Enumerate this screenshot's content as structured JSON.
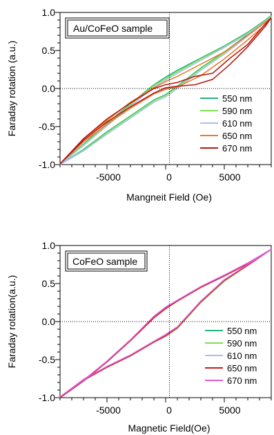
{
  "chart_data": [
    {
      "type": "line",
      "title": "",
      "xlabel": "Mangneit Field (Oe)",
      "ylabel": "Faraday rotation  (a.u.)",
      "xlim": [
        -9000,
        9000
      ],
      "ylim": [
        -1.0,
        1.0
      ],
      "xticks": [
        "-5000",
        "0",
        "5000"
      ],
      "yticks": [
        "-1.0",
        "-0.5",
        "0.0",
        "0.5",
        "1.0"
      ],
      "annotation": "Au/CoFeO sample",
      "legend_placement": "bottom-right",
      "grid": false,
      "series": [
        {
          "name": "550 nm",
          "color": "#1fb57c",
          "upper": [
            [
              -9000,
              -1.0
            ],
            [
              -7000,
              -0.73
            ],
            [
              -5000,
              -0.46
            ],
            [
              -3000,
              -0.2
            ],
            [
              -1000,
              0.05
            ],
            [
              0,
              0.15
            ],
            [
              1000,
              0.24
            ],
            [
              3000,
              0.4
            ],
            [
              5000,
              0.56
            ],
            [
              7000,
              0.74
            ],
            [
              8500,
              0.9
            ],
            [
              9000,
              0.96
            ]
          ],
          "lower": [
            [
              -9000,
              -1.0
            ],
            [
              -7000,
              -0.8
            ],
            [
              -5000,
              -0.57
            ],
            [
              -3000,
              -0.36
            ],
            [
              -1000,
              -0.15
            ],
            [
              0,
              -0.08
            ],
            [
              1000,
              0.03
            ],
            [
              3000,
              0.27
            ],
            [
              5000,
              0.48
            ],
            [
              7000,
              0.71
            ],
            [
              8500,
              0.89
            ],
            [
              9000,
              0.96
            ]
          ]
        },
        {
          "name": "590 nm",
          "color": "#7fe052",
          "upper": [
            [
              -9000,
              -1.0
            ],
            [
              -7000,
              -0.74
            ],
            [
              -5000,
              -0.47
            ],
            [
              -3000,
              -0.21
            ],
            [
              -1000,
              0.04
            ],
            [
              0,
              0.13
            ],
            [
              1000,
              0.22
            ],
            [
              3000,
              0.39
            ],
            [
              5000,
              0.55
            ],
            [
              7000,
              0.73
            ],
            [
              8500,
              0.89
            ],
            [
              9000,
              0.95
            ]
          ],
          "lower": [
            [
              -9000,
              -1.0
            ],
            [
              -7000,
              -0.81
            ],
            [
              -5000,
              -0.58
            ],
            [
              -3000,
              -0.37
            ],
            [
              -1000,
              -0.16
            ],
            [
              0,
              -0.09
            ],
            [
              1000,
              0.02
            ],
            [
              3000,
              0.26
            ],
            [
              5000,
              0.47
            ],
            [
              7000,
              0.7
            ],
            [
              8500,
              0.88
            ],
            [
              9000,
              0.95
            ]
          ]
        },
        {
          "name": "610 nm",
          "color": "#a9bff0",
          "upper": [
            [
              -9000,
              -1.0
            ],
            [
              -7000,
              -0.75
            ],
            [
              -5000,
              -0.49
            ],
            [
              -3000,
              -0.23
            ],
            [
              -1000,
              0.02
            ],
            [
              0,
              0.11
            ],
            [
              1000,
              0.2
            ],
            [
              3000,
              0.37
            ],
            [
              5000,
              0.54
            ],
            [
              7000,
              0.72
            ],
            [
              8500,
              0.88
            ],
            [
              9000,
              0.94
            ]
          ],
          "lower": [
            [
              -9000,
              -1.0
            ],
            [
              -7000,
              -0.82
            ],
            [
              -5000,
              -0.6
            ],
            [
              -3000,
              -0.39
            ],
            [
              -1000,
              -0.18
            ],
            [
              0,
              -0.11
            ],
            [
              1000,
              0.0
            ],
            [
              3000,
              0.24
            ],
            [
              5000,
              0.45
            ],
            [
              7000,
              0.69
            ],
            [
              8500,
              0.87
            ],
            [
              9000,
              0.94
            ]
          ]
        },
        {
          "name": "650 nm",
          "color": "#f07a24",
          "upper": [
            [
              -9000,
              -0.99
            ],
            [
              -7000,
              -0.66
            ],
            [
              -5000,
              -0.42
            ],
            [
              -3000,
              -0.18
            ],
            [
              -1000,
              0.01
            ],
            [
              0,
              0.09
            ],
            [
              1000,
              0.16
            ],
            [
              3000,
              0.32
            ],
            [
              5000,
              0.48
            ],
            [
              7000,
              0.7
            ],
            [
              8500,
              0.87
            ],
            [
              9000,
              0.93
            ]
          ],
          "lower": [
            [
              -9000,
              -0.99
            ],
            [
              -7000,
              -0.7
            ],
            [
              -5000,
              -0.47
            ],
            [
              -3000,
              -0.26
            ],
            [
              -1000,
              -0.07
            ],
            [
              0,
              -0.01
            ],
            [
              1000,
              0.02
            ],
            [
              3000,
              0.17
            ],
            [
              5000,
              0.39
            ],
            [
              7000,
              0.64
            ],
            [
              8500,
              0.84
            ],
            [
              9000,
              0.93
            ]
          ]
        },
        {
          "name": "670 nm",
          "color": "#b51a14",
          "upper": [
            [
              -9000,
              -0.99
            ],
            [
              -7000,
              -0.66
            ],
            [
              -5000,
              -0.4
            ],
            [
              -3000,
              -0.19
            ],
            [
              -1000,
              0.0
            ],
            [
              0,
              0.05
            ],
            [
              1000,
              0.08
            ],
            [
              2500,
              0.16
            ],
            [
              4000,
              0.2
            ],
            [
              5500,
              0.4
            ],
            [
              7000,
              0.58
            ],
            [
              8500,
              0.85
            ],
            [
              9000,
              0.93
            ]
          ],
          "lower": [
            [
              -9000,
              -0.99
            ],
            [
              -7000,
              -0.68
            ],
            [
              -5000,
              -0.44
            ],
            [
              -3000,
              -0.24
            ],
            [
              -1000,
              -0.06
            ],
            [
              0,
              0.01
            ],
            [
              1000,
              0.03
            ],
            [
              2500,
              0.05
            ],
            [
              4000,
              0.12
            ],
            [
              5500,
              0.32
            ],
            [
              7000,
              0.55
            ],
            [
              8500,
              0.82
            ],
            [
              9000,
              0.93
            ]
          ]
        }
      ]
    },
    {
      "type": "line",
      "title": "",
      "xlabel": "Magnetic Field(Oe)",
      "ylabel": "Faraday rotation(a.u.)",
      "xlim": [
        -9000,
        9000
      ],
      "ylim": [
        -1.0,
        1.0
      ],
      "xticks": [
        "-5000",
        "0",
        "5000"
      ],
      "yticks": [
        "-1.0",
        "-0.5",
        "0.0",
        "0.5",
        "1.0"
      ],
      "annotation": "CoFeO sample",
      "legend_placement": "bottom-right",
      "grid": false,
      "series": [
        {
          "name": "550 nm",
          "color": "#1fb57c",
          "upper": [
            [
              -9000,
              -1.0
            ],
            [
              -7000,
              -0.78
            ],
            [
              -5000,
              -0.53
            ],
            [
              -3000,
              -0.25
            ],
            [
              -1000,
              0.06
            ],
            [
              0,
              0.18
            ],
            [
              1000,
              0.27
            ],
            [
              3000,
              0.45
            ],
            [
              5000,
              0.6
            ],
            [
              7000,
              0.76
            ],
            [
              9000,
              0.95
            ]
          ],
          "lower": [
            [
              -9000,
              -1.0
            ],
            [
              -7000,
              -0.77
            ],
            [
              -5000,
              -0.6
            ],
            [
              -3000,
              -0.45
            ],
            [
              -1000,
              -0.27
            ],
            [
              0,
              -0.18
            ],
            [
              1000,
              -0.08
            ],
            [
              3000,
              0.26
            ],
            [
              5000,
              0.54
            ],
            [
              7000,
              0.74
            ],
            [
              9000,
              0.95
            ]
          ]
        },
        {
          "name": "590 nm",
          "color": "#7fe052",
          "upper": [
            [
              -9000,
              -1.0
            ],
            [
              -7000,
              -0.78
            ],
            [
              -5000,
              -0.53
            ],
            [
              -3000,
              -0.25
            ],
            [
              -1000,
              0.05
            ],
            [
              0,
              0.17
            ],
            [
              1000,
              0.27
            ],
            [
              3000,
              0.45
            ],
            [
              5000,
              0.6
            ],
            [
              7000,
              0.76
            ],
            [
              9000,
              0.95
            ]
          ],
          "lower": [
            [
              -9000,
              -1.0
            ],
            [
              -7000,
              -0.77
            ],
            [
              -5000,
              -0.6
            ],
            [
              -3000,
              -0.45
            ],
            [
              -1000,
              -0.27
            ],
            [
              0,
              -0.19
            ],
            [
              1000,
              -0.09
            ],
            [
              3000,
              0.25
            ],
            [
              5000,
              0.53
            ],
            [
              7000,
              0.74
            ],
            [
              9000,
              0.95
            ]
          ]
        },
        {
          "name": "610 nm",
          "color": "#a9bff0",
          "upper": [
            [
              -9000,
              -1.0
            ],
            [
              -7000,
              -0.78
            ],
            [
              -5000,
              -0.52
            ],
            [
              -3000,
              -0.24
            ],
            [
              -1000,
              0.06
            ],
            [
              0,
              0.18
            ],
            [
              1000,
              0.28
            ],
            [
              3000,
              0.46
            ],
            [
              5000,
              0.61
            ],
            [
              7000,
              0.77
            ],
            [
              9000,
              0.95
            ]
          ],
          "lower": [
            [
              -9000,
              -1.0
            ],
            [
              -7000,
              -0.76
            ],
            [
              -5000,
              -0.59
            ],
            [
              -3000,
              -0.44
            ],
            [
              -1000,
              -0.26
            ],
            [
              0,
              -0.18
            ],
            [
              1000,
              -0.07
            ],
            [
              3000,
              0.27
            ],
            [
              5000,
              0.55
            ],
            [
              7000,
              0.75
            ],
            [
              9000,
              0.95
            ]
          ]
        },
        {
          "name": "650 nm",
          "color": "#d0181a",
          "upper": [
            [
              -9000,
              -1.0
            ],
            [
              -7000,
              -0.78
            ],
            [
              -5000,
              -0.53
            ],
            [
              -3000,
              -0.25
            ],
            [
              -1000,
              0.05
            ],
            [
              0,
              0.17
            ],
            [
              1000,
              0.27
            ],
            [
              3000,
              0.45
            ],
            [
              5000,
              0.6
            ],
            [
              7000,
              0.76
            ],
            [
              9000,
              0.95
            ]
          ],
          "lower": [
            [
              -9000,
              -1.0
            ],
            [
              -7000,
              -0.77
            ],
            [
              -5000,
              -0.6
            ],
            [
              -3000,
              -0.45
            ],
            [
              -1000,
              -0.27
            ],
            [
              0,
              -0.19
            ],
            [
              1000,
              -0.08
            ],
            [
              3000,
              0.26
            ],
            [
              5000,
              0.54
            ],
            [
              7000,
              0.74
            ],
            [
              9000,
              0.95
            ]
          ]
        },
        {
          "name": "670 nm",
          "color": "#e05ad8",
          "upper": [
            [
              -9000,
              -0.99
            ],
            [
              -7000,
              -0.77
            ],
            [
              -5000,
              -0.52
            ],
            [
              -3000,
              -0.24
            ],
            [
              -1000,
              0.07
            ],
            [
              0,
              0.19
            ],
            [
              1000,
              0.28
            ],
            [
              3000,
              0.46
            ],
            [
              5000,
              0.61
            ],
            [
              7000,
              0.77
            ],
            [
              9000,
              0.95
            ]
          ],
          "lower": [
            [
              -9000,
              -0.99
            ],
            [
              -7000,
              -0.76
            ],
            [
              -5000,
              -0.59
            ],
            [
              -3000,
              -0.44
            ],
            [
              -1000,
              -0.26
            ],
            [
              0,
              -0.17
            ],
            [
              1000,
              -0.07
            ],
            [
              3000,
              0.27
            ],
            [
              5000,
              0.55
            ],
            [
              7000,
              0.75
            ],
            [
              9000,
              0.95
            ]
          ]
        }
      ]
    }
  ]
}
